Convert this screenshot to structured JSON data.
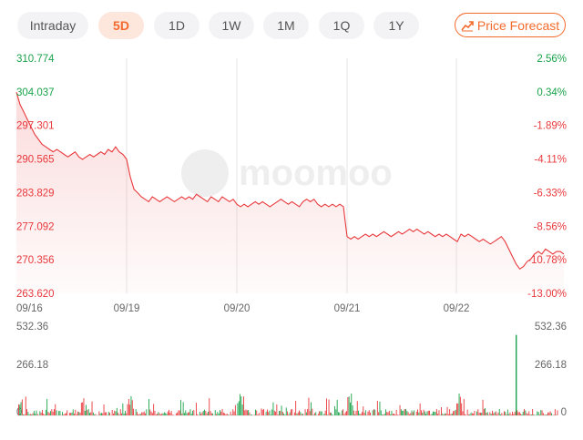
{
  "tabs": [
    {
      "label": "Intraday",
      "active": false
    },
    {
      "label": "5D",
      "active": true
    },
    {
      "label": "1D",
      "active": false
    },
    {
      "label": "1W",
      "active": false
    },
    {
      "label": "1M",
      "active": false
    },
    {
      "label": "1Q",
      "active": false
    },
    {
      "label": "1Y",
      "active": false
    }
  ],
  "forecast_button": {
    "label": "Price Forecast",
    "icon": "trend-up-icon"
  },
  "watermark": "moomoo",
  "colors": {
    "up": "#1aa34a",
    "down": "#e8393c",
    "accent": "#f46a2c",
    "grid": "#e6e6e6"
  },
  "chart_data": {
    "type": "line",
    "price_ticks": [
      "310.774",
      "304.037",
      "297.301",
      "290.565",
      "283.829",
      "277.092",
      "270.356",
      "263.620"
    ],
    "percent_ticks": [
      "2.56%",
      "0.34%",
      "-1.89%",
      "-4.11%",
      "-6.33%",
      "-8.56%",
      "-10.78%",
      "-13.00%"
    ],
    "x_ticks": [
      "09/16",
      "09/19",
      "09/20",
      "09/21",
      "09/22"
    ],
    "ylim": [
      263.62,
      310.774
    ],
    "prev_close": 303.0,
    "volume_ticks": [
      "532.36",
      "266.18",
      "0"
    ],
    "series": [
      {
        "values": [
          304.0,
          301.5,
          300.0,
          298.5,
          297.0,
          295.5,
          294.5,
          293.5,
          293.0,
          292.5,
          292.0,
          292.5,
          292.0,
          291.5,
          291.0,
          291.5,
          292.0,
          291.0,
          290.5,
          291.0,
          291.5,
          291.0,
          291.5,
          292.0,
          291.5,
          292.5,
          292.0,
          293.0,
          292.0,
          291.5,
          290.5,
          287.0,
          284.5,
          283.8,
          283.0,
          282.5,
          282.0,
          283.0,
          282.5,
          282.0,
          282.5,
          283.0,
          282.5,
          282.0,
          282.5,
          283.0,
          282.5,
          283.0,
          282.5,
          283.5,
          283.0,
          282.5,
          282.0,
          283.0,
          282.5,
          282.0,
          283.0,
          282.5,
          282.0,
          282.5,
          281.5,
          281.0,
          281.5,
          281.0,
          281.5,
          282.0,
          281.5,
          282.0,
          281.5,
          281.0,
          281.5,
          282.0,
          282.5,
          282.0,
          281.5,
          282.0,
          281.5,
          281.0,
          282.0,
          282.5,
          282.0,
          282.5,
          281.5,
          281.0,
          281.5,
          281.0,
          281.5,
          281.0,
          281.5,
          281.0,
          275.0,
          274.5,
          275.0,
          274.5,
          275.0,
          275.5,
          275.0,
          275.5,
          275.0,
          275.5,
          276.0,
          275.5,
          275.0,
          275.5,
          276.0,
          275.5,
          276.0,
          276.5,
          276.0,
          276.5,
          276.0,
          275.5,
          276.0,
          275.5,
          275.0,
          275.5,
          275.0,
          275.5,
          275.0,
          274.5,
          274.0,
          275.5,
          275.0,
          275.5,
          275.0,
          274.5,
          274.0,
          274.5,
          274.0,
          273.5,
          274.0,
          274.5,
          275.0,
          274.0,
          272.5,
          271.0,
          269.5,
          268.5,
          269.0,
          270.0,
          270.5,
          271.5,
          272.0,
          271.5,
          272.5,
          272.0,
          271.5,
          272.0,
          272.0,
          271.5
        ]
      }
    ],
    "volume_spike": {
      "value": 532.36
    }
  }
}
